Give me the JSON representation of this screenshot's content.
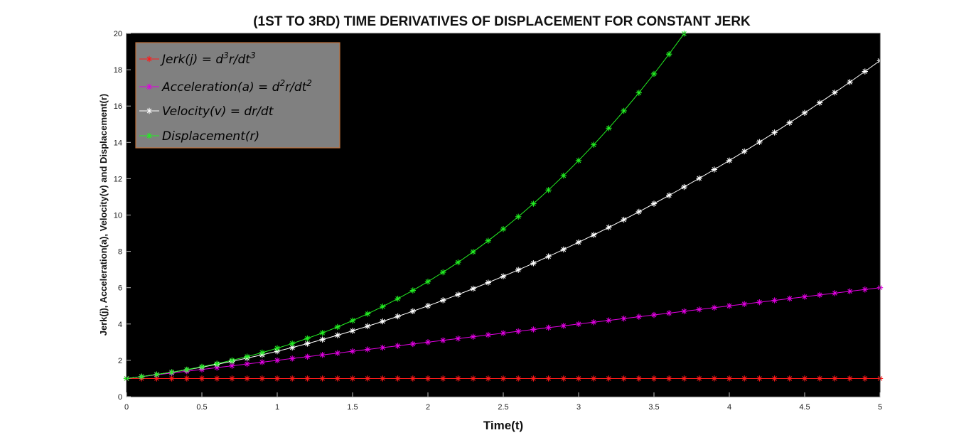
{
  "chart_data": {
    "type": "line",
    "title": "(1ST TO 3RD) TIME DERIVATIVES OF DISPLACEMENT FOR CONSTANT JERK",
    "xlabel": "Time(t)",
    "ylabel": "Jerk(j), Acceleration(a), Velocity(v) and Displacement(r)",
    "xlim": [
      0,
      5
    ],
    "ylim": [
      0,
      20
    ],
    "xticks": [
      0,
      0.5,
      1,
      1.5,
      2,
      2.5,
      3,
      3.5,
      4,
      4.5,
      5
    ],
    "yticks": [
      0,
      2,
      4,
      6,
      8,
      10,
      12,
      14,
      16,
      18,
      20
    ],
    "grid": false,
    "background": "#000000",
    "legend_position": "top-left",
    "legend_background": "#808080",
    "legend_border": "#c0703a",
    "marker": "asterisk",
    "x": {
      "start": 0,
      "stop": 5,
      "step": 0.1
    },
    "series": [
      {
        "name": "Jerk(j) = d³r/dt³",
        "legend": {
          "pre": "Jerk(j) = d",
          "sup1": "3",
          "mid": "r/dt",
          "sup2": "3"
        },
        "color": "#ff1a1a",
        "formula": "1"
      },
      {
        "name": "Acceleration(a) = d²r/dt²",
        "legend": {
          "pre": "Acceleration(a) = d",
          "sup1": "2",
          "mid": "r/dt",
          "sup2": "2"
        },
        "color": "#e000e0",
        "formula": "1 + t"
      },
      {
        "name": "Velocity(v) = dr/dt",
        "legend": {
          "pre": "Velocity(v) = dr/dt",
          "sup1": "",
          "mid": "",
          "sup2": ""
        },
        "color": "#ffffff",
        "formula": "1 + t + t^2/2"
      },
      {
        "name": "Displacement(r)",
        "legend": {
          "pre": "Displacement(r)",
          "sup1": "",
          "mid": "",
          "sup2": ""
        },
        "color": "#22ee22",
        "formula": "1 + t + t^2/2 + t^3/6"
      }
    ]
  }
}
